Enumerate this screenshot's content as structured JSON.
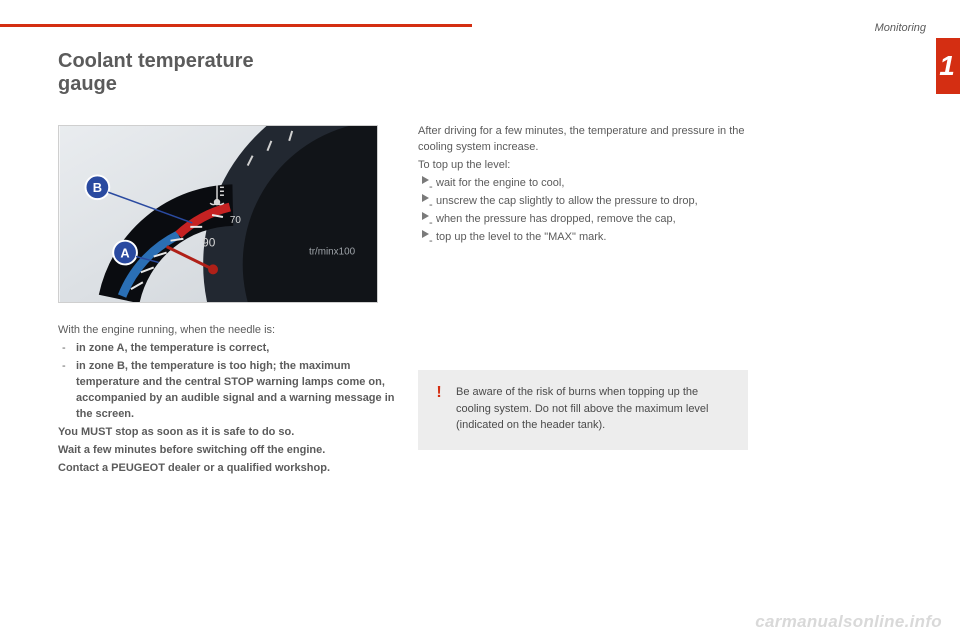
{
  "header": {
    "section": "Monitoring",
    "chapter": "1",
    "accent_color": "#d42e12"
  },
  "title": "Coolant temperature\ngauge",
  "figure": {
    "labels": {
      "a": "A",
      "b": "B"
    },
    "ticks": [
      "70",
      "90"
    ],
    "unit": "tr/minx100"
  },
  "left_column": {
    "intro": "With the engine running, when the needle is:",
    "bullets": [
      "in zone A, the temperature is correct,",
      "in zone B, the temperature is too high; the maximum temperature and the central STOP warning lamps come on, accompanied by an audible signal and a warning message in the screen."
    ],
    "must_stop": "You MUST stop as soon as it is safe to do so.",
    "wait": "Wait a few minutes before switching off the engine.",
    "contact": "Contact a PEUGEOT dealer or a qualified workshop."
  },
  "right_column": {
    "para1": "After driving for a few minutes, the temperature and pressure in the cooling system increase.",
    "para2": "To top up the level:",
    "steps": [
      "wait for the engine to cool,",
      "unscrew the cap slightly to allow the pressure to drop,",
      "when the pressure has dropped, remove the cap,",
      "top up the level to the \"MAX\" mark."
    ]
  },
  "warning": "Be aware of the risk of burns when topping up the cooling system. Do not fill above the maximum level (indicated on the header tank).",
  "footer": "carmanualsonline.info"
}
